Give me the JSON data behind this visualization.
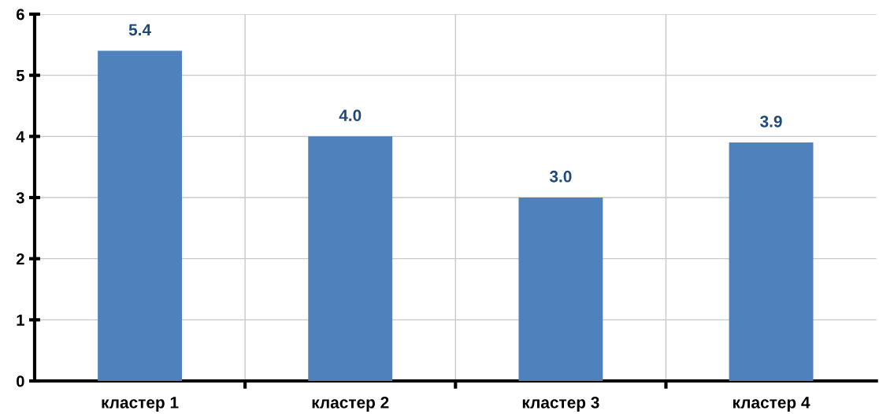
{
  "chart_data": {
    "type": "bar",
    "categories": [
      "кластер 1",
      "кластер 2",
      "кластер 3",
      "кластер 4"
    ],
    "values": [
      5.4,
      4.0,
      3.0,
      3.9
    ],
    "value_labels": [
      "5.4",
      "4.0",
      "3.0",
      "3.9"
    ],
    "color": "#4f81bd",
    "ylim": [
      0,
      6
    ],
    "yticks": [
      0,
      1,
      2,
      3,
      4,
      5,
      6
    ],
    "grid": true,
    "legend": false
  }
}
